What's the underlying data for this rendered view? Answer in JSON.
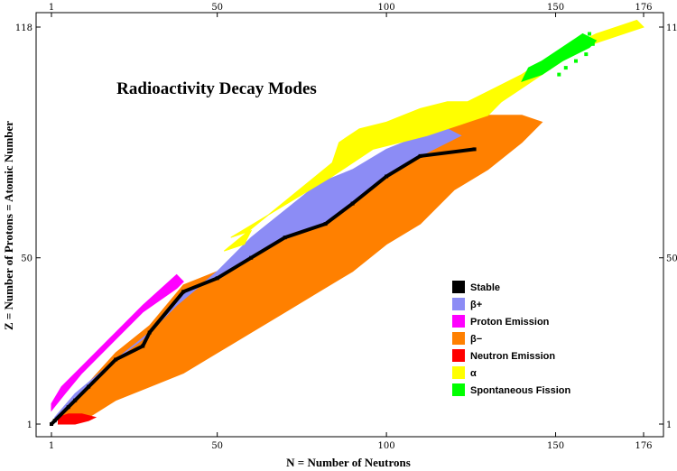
{
  "chart_data": {
    "type": "heatmap",
    "title": "Radioactivity Decay Modes",
    "xlabel": "N = Number of Neutrons",
    "ylabel": "Z = Number of Protons = Atomic Number",
    "xlim": [
      1,
      176
    ],
    "ylim": [
      1,
      118
    ],
    "x_ticks": [
      "1",
      "50",
      "100",
      "150",
      "176"
    ],
    "y_ticks": [
      "1",
      "50",
      "118"
    ],
    "legend_position": "lower-right",
    "categories": [
      {
        "key": "stable",
        "label": "Stable",
        "color": "#000000"
      },
      {
        "key": "beta_plus",
        "label": "β+",
        "color": "#8c8cf5"
      },
      {
        "key": "proton",
        "label": "Proton Emission",
        "color": "#ff00ff"
      },
      {
        "key": "beta_minus",
        "label": "β−",
        "color": "#ff8000"
      },
      {
        "key": "neutron",
        "label": "Neutron Emission",
        "color": "#ff0000"
      },
      {
        "key": "alpha",
        "label": "α",
        "color": "#ffff00"
      },
      {
        "key": "fission",
        "label": "Spontaneous Fission",
        "color": "#00ff00"
      }
    ],
    "stability_line": [
      [
        1,
        1
      ],
      [
        2,
        2
      ],
      [
        6,
        6
      ],
      [
        8,
        8
      ],
      [
        12,
        12
      ],
      [
        20,
        20
      ],
      [
        28,
        24
      ],
      [
        30,
        28
      ],
      [
        40,
        40
      ],
      [
        50,
        44
      ],
      [
        60,
        50
      ],
      [
        70,
        56
      ],
      [
        82,
        60
      ],
      [
        90,
        66
      ],
      [
        100,
        74
      ],
      [
        110,
        80
      ],
      [
        126,
        82
      ]
    ],
    "regions": [
      {
        "key": "beta_minus",
        "polygon": [
          [
            3,
            1
          ],
          [
            12,
            3
          ],
          [
            20,
            8
          ],
          [
            30,
            12
          ],
          [
            40,
            16
          ],
          [
            50,
            22
          ],
          [
            60,
            28
          ],
          [
            70,
            34
          ],
          [
            80,
            40
          ],
          [
            90,
            46
          ],
          [
            100,
            54
          ],
          [
            110,
            60
          ],
          [
            120,
            70
          ],
          [
            130,
            76
          ],
          [
            140,
            84
          ],
          [
            146,
            90
          ],
          [
            140,
            92
          ],
          [
            126,
            92
          ],
          [
            110,
            86
          ],
          [
            100,
            78
          ],
          [
            90,
            70
          ],
          [
            82,
            64
          ],
          [
            70,
            58
          ],
          [
            60,
            52
          ],
          [
            50,
            46
          ],
          [
            40,
            42
          ],
          [
            30,
            30
          ],
          [
            20,
            22
          ],
          [
            10,
            11
          ],
          [
            4,
            5
          ]
        ]
      },
      {
        "key": "beta_plus",
        "polygon": [
          [
            2,
            3
          ],
          [
            8,
            10
          ],
          [
            14,
            15
          ],
          [
            20,
            20
          ],
          [
            28,
            26
          ],
          [
            38,
            36
          ],
          [
            50,
            46
          ],
          [
            60,
            56
          ],
          [
            70,
            64
          ],
          [
            80,
            72
          ],
          [
            90,
            76
          ],
          [
            100,
            82
          ],
          [
            110,
            86
          ],
          [
            118,
            88
          ],
          [
            122,
            86
          ],
          [
            110,
            80
          ],
          [
            100,
            74
          ],
          [
            90,
            66
          ],
          [
            82,
            60
          ],
          [
            70,
            56
          ],
          [
            60,
            50
          ],
          [
            50,
            44
          ],
          [
            40,
            40
          ],
          [
            30,
            28
          ],
          [
            20,
            20
          ],
          [
            12,
            12
          ],
          [
            6,
            6
          ],
          [
            2,
            2
          ]
        ]
      },
      {
        "key": "proton",
        "polygon": [
          [
            1,
            5
          ],
          [
            5,
            10
          ],
          [
            10,
            16
          ],
          [
            18,
            24
          ],
          [
            28,
            34
          ],
          [
            38,
            41
          ],
          [
            40,
            43
          ],
          [
            38,
            45
          ],
          [
            28,
            36
          ],
          [
            18,
            26
          ],
          [
            10,
            18
          ],
          [
            4,
            12
          ],
          [
            1,
            7
          ]
        ]
      },
      {
        "key": "neutron",
        "polygon": [
          [
            3,
            1
          ],
          [
            8,
            1
          ],
          [
            12,
            2
          ],
          [
            14,
            3
          ],
          [
            10,
            4
          ],
          [
            6,
            4
          ],
          [
            3,
            3
          ]
        ]
      },
      {
        "key": "alpha",
        "polygon": [
          [
            52,
            52
          ],
          [
            58,
            54
          ],
          [
            60,
            58
          ],
          [
            54,
            56
          ],
          [
            84,
            74
          ],
          [
            90,
            78
          ],
          [
            96,
            82
          ],
          [
            104,
            84
          ],
          [
            112,
            86
          ],
          [
            118,
            88
          ],
          [
            124,
            90
          ],
          [
            130,
            92
          ],
          [
            134,
            96
          ],
          [
            140,
            100
          ],
          [
            146,
            104
          ],
          [
            152,
            108
          ],
          [
            158,
            112
          ],
          [
            164,
            114
          ],
          [
            170,
            116
          ],
          [
            176,
            118
          ],
          [
            174,
            120
          ],
          [
            168,
            118
          ],
          [
            162,
            116
          ],
          [
            154,
            112
          ],
          [
            146,
            108
          ],
          [
            140,
            104
          ],
          [
            132,
            100
          ],
          [
            124,
            96
          ],
          [
            118,
            96
          ],
          [
            110,
            94
          ],
          [
            100,
            90
          ],
          [
            92,
            88
          ],
          [
            86,
            84
          ],
          [
            84,
            78
          ]
        ]
      },
      {
        "key": "fission",
        "polygon": [
          [
            140,
            102
          ],
          [
            146,
            104
          ],
          [
            152,
            108
          ],
          [
            156,
            110
          ],
          [
            160,
            112
          ],
          [
            162,
            114
          ],
          [
            158,
            116
          ],
          [
            152,
            112
          ],
          [
            146,
            108
          ],
          [
            142,
            106
          ]
        ]
      }
    ],
    "fission_dots": [
      [
        148,
        106
      ],
      [
        150,
        108
      ],
      [
        151,
        104
      ],
      [
        154,
        110
      ],
      [
        156,
        108
      ],
      [
        157,
        112
      ],
      [
        158,
        114
      ],
      [
        159,
        110
      ],
      [
        160,
        116
      ],
      [
        161,
        113
      ],
      [
        153,
        106
      ]
    ]
  }
}
